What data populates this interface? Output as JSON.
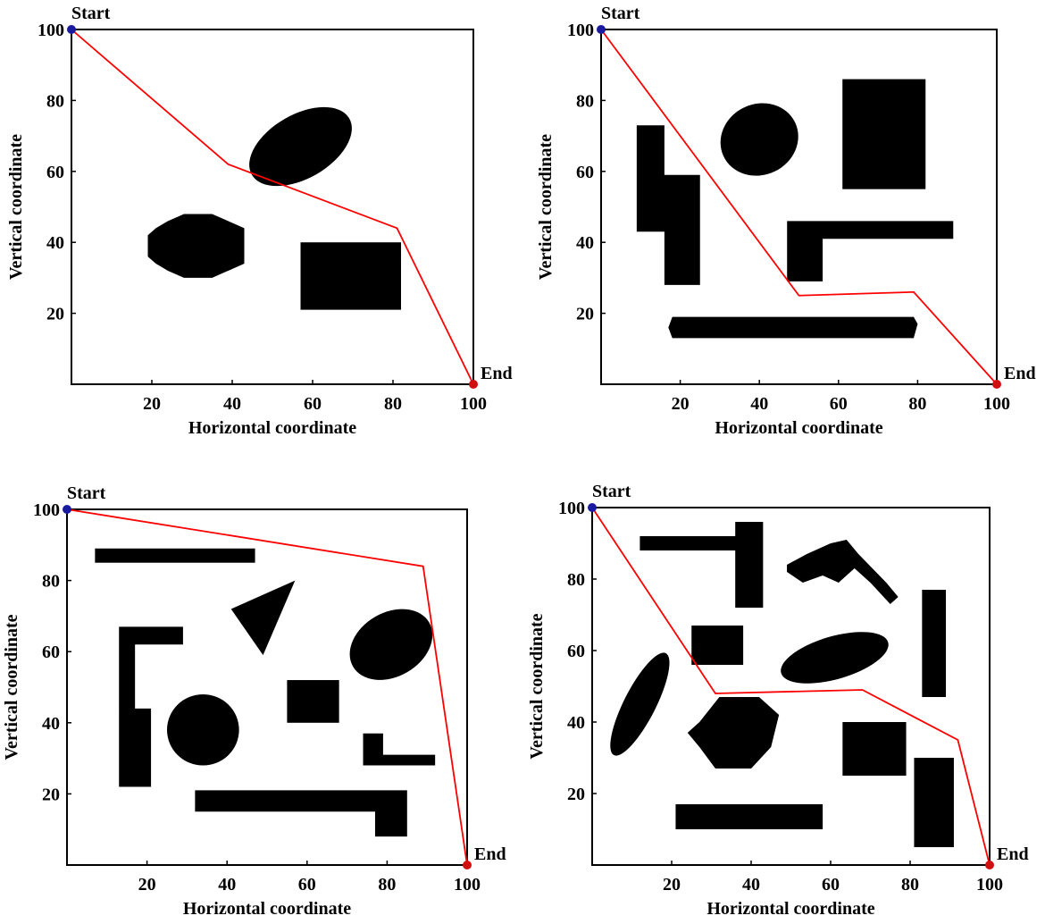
{
  "colors": {
    "path": "#ff0000",
    "obstacle": "#000000",
    "start_marker": "#1a1aa0",
    "end_marker": "#d01010",
    "background": "#ffffff"
  },
  "chart_data": [
    {
      "type": "line",
      "panel": "top-left",
      "xlabel": "Horizontal coordinate",
      "ylabel": "Vertical coordinate",
      "xlim": [
        0,
        100
      ],
      "ylim": [
        0,
        100
      ],
      "xticks": [
        20,
        40,
        60,
        80,
        100
      ],
      "yticks": [
        20,
        40,
        60,
        80,
        100
      ],
      "start_label": "Start",
      "end_label": "End",
      "start": [
        0,
        100
      ],
      "end": [
        100,
        0
      ],
      "grid": false,
      "path": [
        [
          0,
          100
        ],
        [
          39,
          62
        ],
        [
          81,
          44
        ],
        [
          100,
          0
        ]
      ],
      "obstacles": [
        {
          "shape": "ellipse",
          "cx": 57,
          "cy": 67,
          "rx": 14,
          "ry": 9,
          "angle": -30
        },
        {
          "shape": "polygon",
          "points": [
            [
              19,
              42
            ],
            [
              21,
              44
            ],
            [
              24,
              46
            ],
            [
              28,
              48
            ],
            [
              35,
              48
            ],
            [
              39,
              46
            ],
            [
              43,
              44
            ],
            [
              43,
              34
            ],
            [
              39,
              32
            ],
            [
              35,
              30
            ],
            [
              28,
              30
            ],
            [
              24,
              32
            ],
            [
              21,
              34
            ],
            [
              19,
              36
            ]
          ]
        },
        {
          "shape": "rect",
          "x1": 57,
          "y1": 21,
          "x2": 82,
          "y2": 40
        }
      ]
    },
    {
      "type": "line",
      "panel": "top-right",
      "xlabel": "Horizontal coordinate",
      "ylabel": "Vertical coordinate",
      "xlim": [
        0,
        100
      ],
      "ylim": [
        0,
        100
      ],
      "xticks": [
        20,
        40,
        60,
        80,
        100
      ],
      "yticks": [
        20,
        40,
        60,
        80,
        100
      ],
      "start_label": "Start",
      "end_label": "End",
      "start": [
        0,
        100
      ],
      "end": [
        100,
        0
      ],
      "grid": false,
      "path": [
        [
          0,
          100
        ],
        [
          50,
          25
        ],
        [
          79,
          26
        ],
        [
          100,
          0
        ]
      ],
      "obstacles": [
        {
          "shape": "ellipse",
          "cx": 40,
          "cy": 69,
          "rx": 10,
          "ry": 10,
          "angle": -25
        },
        {
          "shape": "rect",
          "x1": 61,
          "y1": 55,
          "x2": 82,
          "y2": 86
        },
        {
          "shape": "polygon",
          "points": [
            [
              9,
              73
            ],
            [
              16,
              73
            ],
            [
              16,
              59
            ],
            [
              25,
              59
            ],
            [
              25,
              28
            ],
            [
              16,
              28
            ],
            [
              16,
              43
            ],
            [
              9,
              43
            ]
          ]
        },
        {
          "shape": "polygon",
          "points": [
            [
              47,
              46
            ],
            [
              89,
              46
            ],
            [
              89,
              41
            ],
            [
              56,
              41
            ],
            [
              56,
              29
            ],
            [
              47,
              29
            ]
          ]
        },
        {
          "shape": "polygon",
          "points": [
            [
              18,
              19
            ],
            [
              79,
              19
            ],
            [
              80,
              17
            ],
            [
              79,
              13
            ],
            [
              18,
              13
            ],
            [
              17,
              16
            ]
          ]
        }
      ]
    },
    {
      "type": "line",
      "panel": "bottom-left",
      "xlabel": "Horizontal coordinate",
      "ylabel": "Vertical coordinate",
      "xlim": [
        0,
        100
      ],
      "ylim": [
        0,
        100
      ],
      "xticks": [
        20,
        40,
        60,
        80,
        100
      ],
      "yticks": [
        20,
        40,
        60,
        80,
        100
      ],
      "start_label": "Start",
      "end_label": "End",
      "start": [
        0,
        100
      ],
      "end": [
        100,
        0
      ],
      "grid": false,
      "path": [
        [
          0,
          100
        ],
        [
          89,
          84
        ],
        [
          100,
          0
        ]
      ],
      "obstacles": [
        {
          "shape": "rect",
          "x1": 7,
          "y1": 85,
          "x2": 47,
          "y2": 89
        },
        {
          "shape": "polygon",
          "points": [
            [
              41,
              72
            ],
            [
              57,
              80
            ],
            [
              49,
              59
            ]
          ]
        },
        {
          "shape": "ellipse",
          "cx": 81,
          "cy": 62,
          "rx": 11,
          "ry": 9,
          "angle": -30
        },
        {
          "shape": "polygon",
          "points": [
            [
              13,
              67
            ],
            [
              29,
              67
            ],
            [
              29,
              62
            ],
            [
              17,
              62
            ],
            [
              17,
              44
            ],
            [
              21,
              44
            ],
            [
              21,
              22
            ],
            [
              13,
              22
            ]
          ]
        },
        {
          "shape": "ellipse",
          "cx": 34,
          "cy": 38,
          "rx": 9,
          "ry": 10,
          "angle": 0
        },
        {
          "shape": "rect",
          "x1": 55,
          "y1": 40,
          "x2": 68,
          "y2": 52
        },
        {
          "shape": "polygon",
          "points": [
            [
              74,
              37
            ],
            [
              79,
              37
            ],
            [
              79,
              31
            ],
            [
              92,
              31
            ],
            [
              92,
              28
            ],
            [
              74,
              28
            ]
          ]
        },
        {
          "shape": "polygon",
          "points": [
            [
              32,
              21
            ],
            [
              85,
              21
            ],
            [
              85,
              8
            ],
            [
              77,
              8
            ],
            [
              77,
              15
            ],
            [
              32,
              15
            ]
          ]
        }
      ]
    },
    {
      "type": "line",
      "panel": "bottom-right",
      "xlabel": "Horizontal coordinate",
      "ylabel": "Vertical coordinate",
      "xlim": [
        0,
        100
      ],
      "ylim": [
        0,
        100
      ],
      "xticks": [
        20,
        40,
        60,
        80,
        100
      ],
      "yticks": [
        20,
        40,
        60,
        80,
        100
      ],
      "start_label": "Start",
      "end_label": "End",
      "start": [
        0,
        100
      ],
      "end": [
        100,
        0
      ],
      "grid": false,
      "path": [
        [
          0,
          100
        ],
        [
          31,
          48
        ],
        [
          68,
          49
        ],
        [
          92,
          35
        ],
        [
          100,
          0
        ]
      ],
      "obstacles": [
        {
          "shape": "polygon",
          "points": [
            [
              12,
              92
            ],
            [
              36,
              92
            ],
            [
              36,
              96
            ],
            [
              43,
              96
            ],
            [
              43,
              72
            ],
            [
              36,
              72
            ],
            [
              36,
              88
            ],
            [
              12,
              88
            ]
          ]
        },
        {
          "shape": "polygon",
          "points": [
            [
              49,
              84
            ],
            [
              54,
              87
            ],
            [
              60,
              90
            ],
            [
              64,
              91
            ],
            [
              67,
              87
            ],
            [
              74,
              79
            ],
            [
              77,
              75
            ],
            [
              75,
              73
            ],
            [
              70,
              79
            ],
            [
              66,
              83
            ],
            [
              62,
              79
            ],
            [
              58,
              81
            ],
            [
              53,
              79
            ],
            [
              49,
              82
            ]
          ]
        },
        {
          "shape": "rect",
          "x1": 83,
          "y1": 47,
          "x2": 89,
          "y2": 77
        },
        {
          "shape": "rect",
          "x1": 25,
          "y1": 56,
          "x2": 38,
          "y2": 67
        },
        {
          "shape": "ellipse",
          "cx": 61,
          "cy": 58,
          "rx": 14,
          "ry": 6,
          "angle": -16
        },
        {
          "shape": "ellipse",
          "cx": 12,
          "cy": 45,
          "rx": 4,
          "ry": 16,
          "angle": 27
        },
        {
          "shape": "polygon",
          "points": [
            [
              27,
              40
            ],
            [
              32,
              47
            ],
            [
              42,
              47
            ],
            [
              47,
              42
            ],
            [
              45,
              33
            ],
            [
              40,
              27
            ],
            [
              31,
              27
            ],
            [
              27,
              33
            ],
            [
              24,
              37
            ]
          ]
        },
        {
          "shape": "rect",
          "x1": 63,
          "y1": 25,
          "x2": 79,
          "y2": 40
        },
        {
          "shape": "rect",
          "x1": 81,
          "y1": 5,
          "x2": 91,
          "y2": 30
        },
        {
          "shape": "rect",
          "x1": 21,
          "y1": 10,
          "x2": 58,
          "y2": 17
        }
      ]
    }
  ]
}
